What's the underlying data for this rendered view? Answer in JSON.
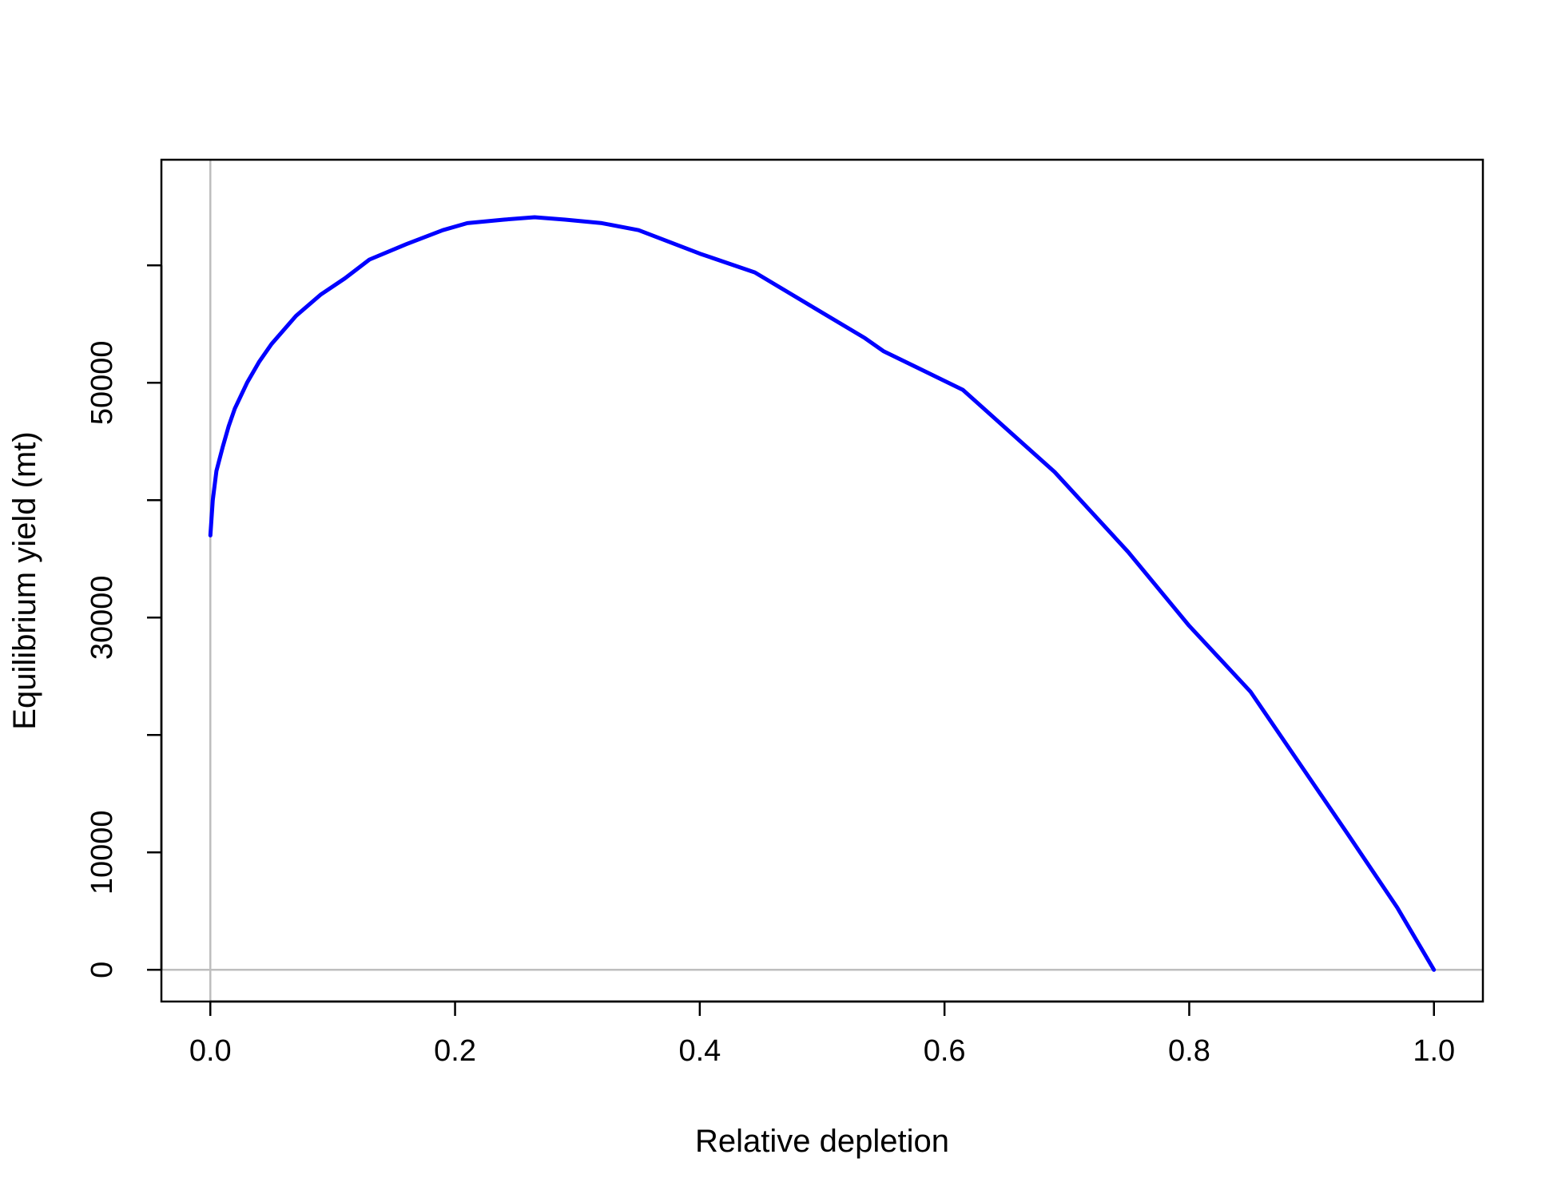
{
  "chart_data": {
    "type": "line",
    "title": "",
    "xlabel": "Relative depletion",
    "ylabel": "Equilibrium yield (mt)",
    "xlim": [
      -0.04,
      1.04
    ],
    "ylim": [
      -2700,
      69000
    ],
    "x_ticks": [
      {
        "value": 0.0,
        "label": "0.0"
      },
      {
        "value": 0.2,
        "label": "0.2"
      },
      {
        "value": 0.4,
        "label": "0.4"
      },
      {
        "value": 0.6,
        "label": "0.6"
      },
      {
        "value": 0.8,
        "label": "0.8"
      },
      {
        "value": 1.0,
        "label": "1.0"
      }
    ],
    "y_ticks": [
      {
        "value": 0,
        "label": "0"
      },
      {
        "value": 10000,
        "label": "10000"
      },
      {
        "value": 20000,
        "label": ""
      },
      {
        "value": 30000,
        "label": "30000"
      },
      {
        "value": 40000,
        "label": ""
      },
      {
        "value": 50000,
        "label": "50000"
      },
      {
        "value": 60000,
        "label": ""
      }
    ],
    "reference_lines": {
      "vertical_x": 0,
      "horizontal_y": 0,
      "color": "#bebebe"
    },
    "grid": false,
    "legend": "none",
    "series": [
      {
        "color": "#0000ff",
        "x": [
          0.0,
          0.002,
          0.005,
          0.01,
          0.015,
          0.02,
          0.03,
          0.04,
          0.05,
          0.07,
          0.09,
          0.11,
          0.13,
          0.16,
          0.19,
          0.21,
          0.24,
          0.265,
          0.29,
          0.32,
          0.35,
          0.4,
          0.445,
          0.49,
          0.535,
          0.55,
          0.615,
          0.69,
          0.75,
          0.8,
          0.85,
          0.89,
          0.93,
          0.97,
          1.0
        ],
        "y": [
          37000,
          40000,
          42500,
          44500,
          46300,
          47800,
          50000,
          51800,
          53300,
          55700,
          57500,
          58900,
          60500,
          61800,
          63000,
          63600,
          63900,
          64100,
          63900,
          63600,
          63000,
          61000,
          59400,
          56600,
          53800,
          52700,
          49400,
          42400,
          35600,
          29300,
          23700,
          17600,
          11500,
          5300,
          0
        ]
      }
    ]
  }
}
